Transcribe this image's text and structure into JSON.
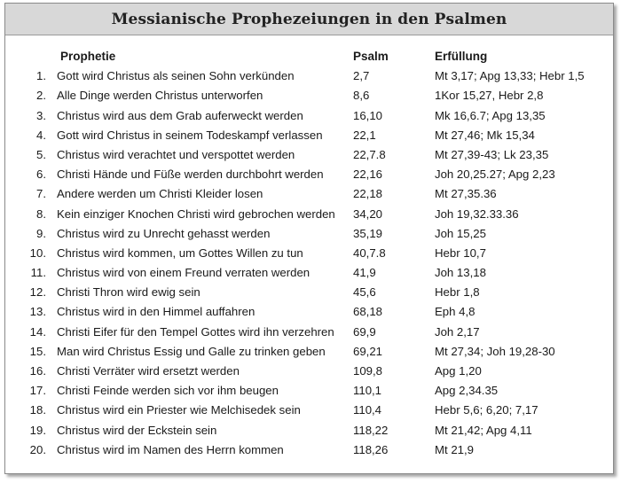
{
  "title": "Messianische Prophezeiungen in den Psalmen",
  "columns": {
    "prophecy": "Prophetie",
    "psalm": "Psalm",
    "fulfillment": "Erfüllung"
  },
  "rows": [
    {
      "num": "1.",
      "prophecy": "Gott wird Christus als seinen Sohn verkünden",
      "psalm": "2,7",
      "fulfillment": "Mt 3,17; Apg 13,33; Hebr 1,5"
    },
    {
      "num": "2.",
      "prophecy": "Alle Dinge werden Christus unterworfen",
      "psalm": "8,6",
      "fulfillment": "1Kor 15,27, Hebr 2,8"
    },
    {
      "num": "3.",
      "prophecy": "Christus wird aus dem Grab auferweckt werden",
      "psalm": "16,10",
      "fulfillment": "Mk 16,6.7; Apg 13,35"
    },
    {
      "num": "4.",
      "prophecy": "Gott wird Christus in seinem Todeskampf verlassen",
      "psalm": "22,1",
      "fulfillment": "Mt 27,46; Mk 15,34"
    },
    {
      "num": "5.",
      "prophecy": "Christus wird verachtet und verspottet werden",
      "psalm": "22,7.8",
      "fulfillment": "Mt 27,39-43; Lk 23,35"
    },
    {
      "num": "6.",
      "prophecy": "Christi Hände und Füße werden durchbohrt werden",
      "psalm": "22,16",
      "fulfillment": "Joh 20,25.27; Apg 2,23"
    },
    {
      "num": "7.",
      "prophecy": "Andere werden um Christi Kleider losen",
      "psalm": "22,18",
      "fulfillment": "Mt 27,35.36"
    },
    {
      "num": "8.",
      "prophecy": "Kein einziger Knochen Christi wird gebrochen werden",
      "psalm": "34,20",
      "fulfillment": "Joh 19,32.33.36"
    },
    {
      "num": "9.",
      "prophecy": "Christus wird zu Unrecht gehasst werden",
      "psalm": "35,19",
      "fulfillment": "Joh 15,25"
    },
    {
      "num": "10.",
      "prophecy": "Christus wird kommen, um Gottes Willen zu tun",
      "psalm": "40,7.8",
      "fulfillment": "Hebr 10,7"
    },
    {
      "num": "11.",
      "prophecy": "Christus wird von einem Freund verraten werden",
      "psalm": "41,9",
      "fulfillment": "Joh 13,18"
    },
    {
      "num": "12.",
      "prophecy": "Christi Thron wird ewig sein",
      "psalm": "45,6",
      "fulfillment": "Hebr 1,8"
    },
    {
      "num": "13.",
      "prophecy": "Christus wird in den Himmel auffahren",
      "psalm": "68,18",
      "fulfillment": "Eph 4,8"
    },
    {
      "num": "14.",
      "prophecy": "Christi Eifer für den Tempel Gottes wird ihn verzehren",
      "psalm": "69,9",
      "fulfillment": "Joh 2,17"
    },
    {
      "num": "15.",
      "prophecy": "Man wird Christus Essig und Galle zu trinken geben",
      "psalm": "69,21",
      "fulfillment": "Mt 27,34; Joh 19,28-30"
    },
    {
      "num": "16.",
      "prophecy": "Christi Verräter wird ersetzt werden",
      "psalm": "109,8",
      "fulfillment": "Apg 1,20"
    },
    {
      "num": "17.",
      "prophecy": "Christi Feinde werden sich vor ihm beugen",
      "psalm": "110,1",
      "fulfillment": "Apg 2,34.35"
    },
    {
      "num": "18.",
      "prophecy": "Christus wird ein Priester wie Melchisedek sein",
      "psalm": "110,4",
      "fulfillment": "Hebr 5,6; 6,20; 7,17"
    },
    {
      "num": "19.",
      "prophecy": "Christus wird der Eckstein sein",
      "psalm": "118,22",
      "fulfillment": "Mt 21,42; Apg 4,11"
    },
    {
      "num": "20.",
      "prophecy": "Christus wird im Namen des Herrn kommen",
      "psalm": "118,26",
      "fulfillment": "Mt 21,9"
    }
  ]
}
